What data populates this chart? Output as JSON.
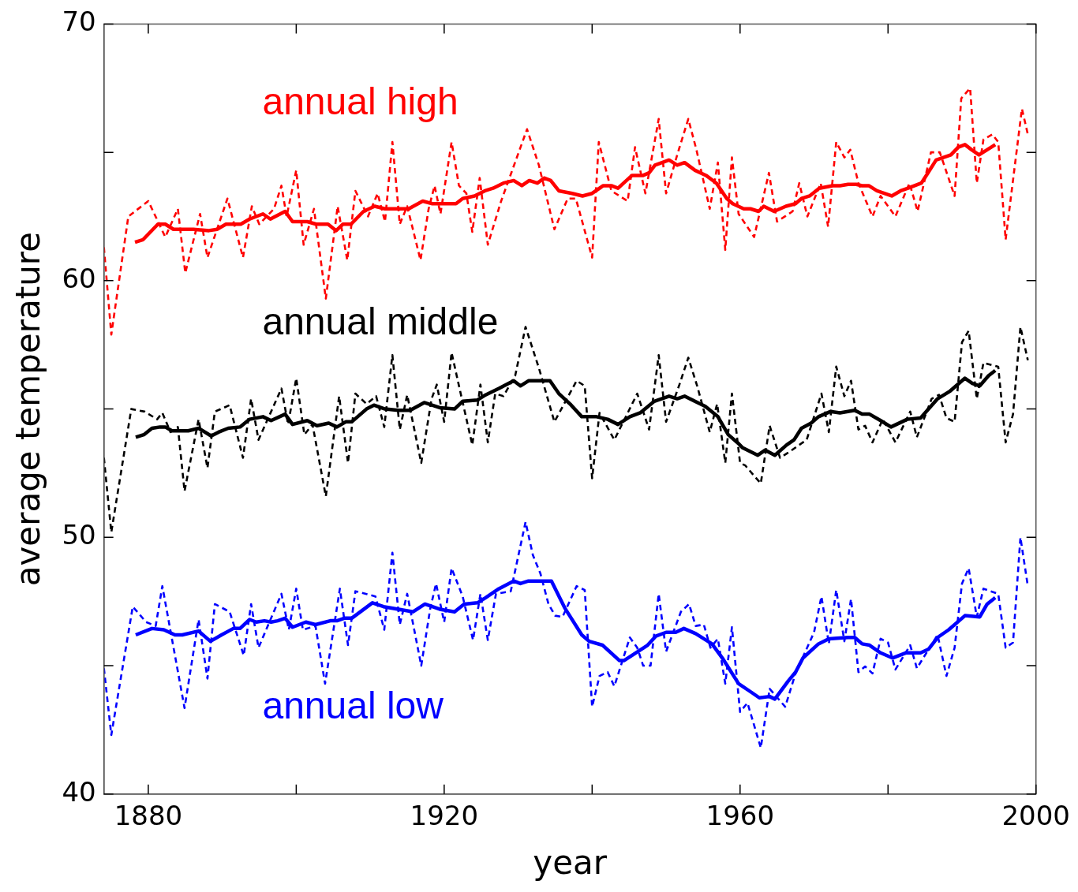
{
  "chart_data": {
    "type": "line",
    "xlabel": "year",
    "ylabel": "average temperature",
    "xlim": [
      1874,
      2000
    ],
    "ylim": [
      40,
      70
    ],
    "xticks": [
      1880,
      {
        "value": 1900,
        "label": null
      },
      1920,
      {
        "value": 1940,
        "label": null
      },
      1960,
      {
        "value": 1980,
        "label": null
      },
      2000
    ],
    "yticks": [
      40,
      {
        "value": 45,
        "label": null
      },
      50,
      {
        "value": 55,
        "label": null
      },
      60,
      {
        "value": 65,
        "label": null
      },
      70
    ],
    "legend": false,
    "marker": "none",
    "series": [
      {
        "color": "#ff0000",
        "line_style": "dashed",
        "x": [
          1874,
          1875,
          1877.3,
          1880,
          1882.3,
          1884,
          1885,
          1887,
          1888,
          1890.7,
          1892.8,
          1894,
          1895,
          1897,
          1898,
          1898.7,
          1900,
          1901,
          1902.4,
          1904,
          1905.6,
          1906.9,
          1908,
          1909.7,
          1911,
          1912,
          1913,
          1914,
          1915,
          1916.8,
          1917.9,
          1918.7,
          1919.5,
          1921,
          1922,
          1923,
          1923.8,
          1924.8,
          1925.9,
          1927.7,
          1931.2,
          1932.8,
          1934.9,
          1936.7,
          1937.8,
          1940,
          1940.9,
          1942.6,
          1944.8,
          1945.8,
          1947.2,
          1949,
          1950,
          1951.5,
          1953,
          1954.1,
          1955.9,
          1957,
          1958,
          1958.9,
          1959.8,
          1961.9,
          1963.9,
          1965,
          1967.1,
          1968,
          1969.1,
          1970.9,
          1971.9,
          1973,
          1974.1,
          1974.9,
          1976,
          1977.9,
          1979,
          1981,
          1982.9,
          1984,
          1985.8,
          1987,
          1989,
          1989.9,
          1991.1,
          1992,
          1992.9,
          1994.1,
          1994.9,
          1995.9,
          1998.1,
          1998.9
        ],
        "values": [
          61.3,
          57.9,
          62.5,
          63.1,
          61.7,
          62.8,
          60.3,
          62.6,
          60.9,
          63.2,
          60.9,
          62.9,
          62.2,
          62.8,
          63.7,
          62.5,
          64.3,
          61.4,
          62.8,
          59.3,
          62.9,
          60.8,
          63.5,
          62.5,
          63.4,
          62.3,
          65.4,
          62.2,
          62.9,
          60.8,
          62.8,
          63.7,
          62.6,
          65.4,
          63.7,
          63.4,
          61.9,
          64,
          61.4,
          63.1,
          65.9,
          64.5,
          62,
          63.2,
          63.2,
          60.9,
          65.4,
          63.5,
          63.1,
          65.2,
          63.4,
          66.3,
          63.4,
          64.9,
          66.3,
          65.1,
          62.8,
          64.6,
          61.2,
          64.8,
          62.6,
          61.7,
          64.2,
          62.3,
          62.7,
          63.8,
          62.5,
          63.8,
          62.1,
          65.4,
          64.8,
          65.1,
          63.8,
          62.5,
          63.3,
          62.5,
          63.8,
          62.7,
          65,
          65,
          63.3,
          67.1,
          67.5,
          63.8,
          65.5,
          65.7,
          65.4,
          61.6,
          66.7,
          65.7
        ]
      },
      {
        "name": "annual high",
        "color": "#ff0000",
        "line_style": "solid",
        "x": [
          1878.2,
          1879.3,
          1881.3,
          1882.3,
          1883.4,
          1886.1,
          1888.2,
          1889.3,
          1890.5,
          1892.5,
          1893.7,
          1895.5,
          1896.5,
          1898.5,
          1899.5,
          1901.5,
          1902.7,
          1904.3,
          1905.4,
          1906.3,
          1907.4,
          1909.1,
          1910.6,
          1912,
          1913.8,
          1915.2,
          1917.1,
          1918.4,
          1919.5,
          1920.3,
          1921.6,
          1922.5,
          1924.1,
          1925.5,
          1926.6,
          1928,
          1929.4,
          1930.5,
          1931.5,
          1932.6,
          1933.5,
          1934.4,
          1935.5,
          1937.3,
          1938.7,
          1940,
          1941.5,
          1942.6,
          1943.5,
          1945.4,
          1946.9,
          1947.7,
          1948.5,
          1950.4,
          1951.5,
          1952.5,
          1953.9,
          1955.4,
          1956.8,
          1958.2,
          1959,
          1960.5,
          1961.4,
          1962.5,
          1963.2,
          1964.6,
          1966.2,
          1967.5,
          1968.3,
          1969.4,
          1970.7,
          1972.5,
          1973.5,
          1974.6,
          1975.7,
          1976.5,
          1977.4,
          1978.5,
          1979.5,
          1980.5,
          1981.7,
          1982.7,
          1984.5,
          1985.4,
          1986.5,
          1987.5,
          1988.5,
          1989.5,
          1990.4,
          1991.3,
          1992.3,
          1993.4,
          1994.5
        ],
        "values": [
          61.5,
          61.6,
          62.2,
          62.2,
          62,
          62,
          61.95,
          62,
          62.2,
          62.2,
          62.4,
          62.6,
          62.4,
          62.7,
          62.3,
          62.3,
          62.2,
          62.2,
          61.95,
          62.2,
          62.2,
          62.7,
          62.9,
          62.8,
          62.8,
          62.8,
          63.1,
          63,
          63,
          63,
          63,
          63.2,
          63.3,
          63.5,
          63.6,
          63.8,
          63.9,
          63.7,
          63.9,
          63.8,
          64,
          63.9,
          63.5,
          63.4,
          63.3,
          63.4,
          63.7,
          63.7,
          63.6,
          64.1,
          64.1,
          64.2,
          64.5,
          64.7,
          64.5,
          64.6,
          64.3,
          64.1,
          63.8,
          63.2,
          63,
          62.8,
          62.8,
          62.7,
          62.9,
          62.7,
          62.9,
          63,
          63.2,
          63.3,
          63.6,
          63.7,
          63.7,
          63.75,
          63.75,
          63.7,
          63.7,
          63.5,
          63.4,
          63.3,
          63.5,
          63.6,
          63.8,
          64.2,
          64.7,
          64.8,
          64.9,
          65.2,
          65.3,
          65.1,
          64.9,
          65.1,
          65.3
        ]
      },
      {
        "color": "#000000",
        "line_style": "dashed",
        "x": [
          1874,
          1875,
          1877.7,
          1879.5,
          1881.2,
          1881.9,
          1883,
          1884,
          1884.9,
          1886.8,
          1888,
          1889,
          1891,
          1892.8,
          1893.9,
          1894.9,
          1898,
          1898.9,
          1900,
          1901.1,
          1902.2,
          1904,
          1905.8,
          1907,
          1908,
          1909.5,
          1910.8,
          1911.9,
          1913,
          1914,
          1915,
          1916.9,
          1918.3,
          1919,
          1920,
          1921,
          1922,
          1923.8,
          1924.9,
          1925.9,
          1926.9,
          1928,
          1929.6,
          1931,
          1932.8,
          1934.9,
          1937.9,
          1939,
          1940,
          1941,
          1943,
          1946.1,
          1947.7,
          1949,
          1950,
          1951.8,
          1953,
          1954.2,
          1955.9,
          1956.9,
          1958,
          1958.9,
          1960,
          1960.7,
          1962.8,
          1964,
          1965.4,
          1966.5,
          1969,
          1971,
          1972,
          1973,
          1974.1,
          1975,
          1976,
          1976.9,
          1977.9,
          1979.3,
          1981,
          1983,
          1983.9,
          1985.9,
          1986.9,
          1987.9,
          1989,
          1990,
          1990.9,
          1992,
          1992.9,
          1994.9,
          1995.9,
          1996.9,
          1997.9,
          1998.9
        ],
        "values": [
          53.1,
          50.2,
          55,
          54.9,
          54.6,
          54.85,
          54.1,
          54.3,
          51.8,
          54.6,
          52.7,
          54.9,
          55.15,
          53.1,
          55.4,
          53.8,
          55.8,
          54.4,
          56.2,
          54,
          54.4,
          51.6,
          55.5,
          52.9,
          55.6,
          55.2,
          55.5,
          54.3,
          57.1,
          54.2,
          55.55,
          52.9,
          55.4,
          55.95,
          54.5,
          57.2,
          55.9,
          53.6,
          55.95,
          53.7,
          55.6,
          55.5,
          56.3,
          58.2,
          56.6,
          54.5,
          56.1,
          55.9,
          52.3,
          54.85,
          53.8,
          55.6,
          54.2,
          57.1,
          54.5,
          55.95,
          57,
          55.9,
          54.1,
          55.2,
          52.9,
          55.6,
          52.9,
          52.8,
          52.1,
          54.35,
          53.1,
          53.3,
          53.8,
          55.6,
          54.1,
          56.65,
          55.5,
          56.1,
          54.2,
          54.35,
          53.7,
          54.6,
          53.7,
          54.9,
          53.9,
          55.4,
          55.55,
          54.65,
          54.5,
          57.6,
          58.05,
          55.4,
          56.8,
          56.65,
          53.7,
          54.8,
          58.2,
          56.9
        ]
      },
      {
        "name": "annual middle",
        "color": "#000000",
        "line_style": "solid",
        "x": [
          1878.3,
          1879.4,
          1880.5,
          1881.6,
          1882.3,
          1883.2,
          1885.4,
          1886.8,
          1888.5,
          1889.5,
          1890.8,
          1892.4,
          1893.7,
          1895.5,
          1896.6,
          1898.5,
          1899.5,
          1901.5,
          1902.8,
          1904.4,
          1905.5,
          1906.7,
          1907.5,
          1909.5,
          1910.5,
          1912,
          1913.8,
          1915.4,
          1917.3,
          1919.4,
          1921.4,
          1922.5,
          1924.5,
          1925.6,
          1927.4,
          1929.4,
          1930.3,
          1931.4,
          1934.3,
          1935.5,
          1937,
          1938.6,
          1940.6,
          1942.1,
          1943.5,
          1945.1,
          1946.5,
          1948.4,
          1950.4,
          1951.5,
          1952.5,
          1955.3,
          1957,
          1958.4,
          1959.8,
          1960.3,
          1962.4,
          1963.4,
          1964.7,
          1966.3,
          1967.3,
          1968.3,
          1969.6,
          1970.6,
          1972.2,
          1973.5,
          1975.5,
          1976.5,
          1977.5,
          1979,
          1980.4,
          1982.6,
          1984.4,
          1986.7,
          1988.4,
          1990.4,
          1991.4,
          1992.4,
          1993.6,
          1994.5
        ],
        "values": [
          53.9,
          54,
          54.25,
          54.3,
          54.3,
          54.15,
          54.15,
          54.25,
          53.95,
          54.1,
          54.25,
          54.3,
          54.6,
          54.7,
          54.55,
          54.8,
          54.4,
          54.55,
          54.35,
          54.45,
          54.3,
          54.5,
          54.5,
          55,
          55.15,
          55,
          54.95,
          54.95,
          55.25,
          55.05,
          55,
          55.3,
          55.35,
          55.55,
          55.8,
          56.1,
          55.9,
          56.1,
          56.1,
          55.6,
          55.2,
          54.7,
          54.7,
          54.6,
          54.4,
          54.7,
          54.85,
          55.3,
          55.5,
          55.4,
          55.5,
          55.1,
          54.7,
          54,
          53.65,
          53.5,
          53.2,
          53.4,
          53.2,
          53.6,
          53.8,
          54.25,
          54.45,
          54.7,
          54.9,
          54.85,
          54.95,
          54.8,
          54.8,
          54.55,
          54.3,
          54.6,
          54.65,
          55.4,
          55.7,
          56.2,
          56,
          55.9,
          56.3,
          56.5
        ]
      },
      {
        "color": "#0000ff",
        "line_style": "dashed",
        "x": [
          1874,
          1875,
          1877.9,
          1879.7,
          1881,
          1881.9,
          1884.9,
          1886.8,
          1888,
          1889,
          1891,
          1892.9,
          1893.9,
          1894.9,
          1898,
          1899,
          1900,
          1900.9,
          1902.6,
          1903.9,
          1905.9,
          1907,
          1908,
          1910.7,
          1911.9,
          1913,
          1914,
          1915,
          1916.9,
          1918.1,
          1918.9,
          1920,
          1921,
          1922.5,
          1923.9,
          1924.9,
          1925.9,
          1927,
          1929,
          1931,
          1932,
          1933,
          1934.1,
          1935,
          1936,
          1937.9,
          1939,
          1940,
          1941,
          1942.1,
          1943,
          1945.1,
          1946.1,
          1946.9,
          1947.9,
          1949,
          1950,
          1952,
          1953.1,
          1954,
          1955.1,
          1956,
          1957,
          1958,
          1958.9,
          1960,
          1961,
          1962.8,
          1964,
          1966.1,
          1967.5,
          1970,
          1971,
          1972,
          1973,
          1974.1,
          1975,
          1976,
          1976.9,
          1977.9,
          1979,
          1980,
          1981,
          1983,
          1983.9,
          1986.7,
          1987.9,
          1989,
          1990,
          1990.9,
          1992,
          1992.9,
          1994.9,
          1995.9,
          1996.9,
          1997.9,
          1998.9
        ],
        "values": [
          44.9,
          42.3,
          47.3,
          46.7,
          46.55,
          48.1,
          43.35,
          46.8,
          44.5,
          47.4,
          47.1,
          45.4,
          47.4,
          45.7,
          47.8,
          46.4,
          48,
          46.4,
          46.55,
          44.3,
          48,
          45.8,
          47.9,
          47.7,
          46.4,
          49.4,
          46.6,
          47.8,
          45,
          47.2,
          48.2,
          46.7,
          48.8,
          47.7,
          46,
          47.8,
          46,
          47.8,
          47.9,
          50.6,
          49.3,
          48.6,
          47.4,
          46.95,
          46.9,
          48.1,
          47.95,
          43.4,
          44.6,
          44.75,
          44.2,
          46.1,
          45.7,
          45,
          45,
          47.8,
          45.55,
          47.1,
          47.4,
          46.55,
          46.6,
          45.7,
          46.05,
          44.3,
          46.5,
          43.2,
          43.55,
          41.8,
          44.1,
          43.4,
          44.7,
          46.3,
          47.7,
          45.85,
          47.95,
          45.95,
          47.6,
          44.75,
          44.97,
          44.7,
          46.05,
          45.9,
          44.85,
          45.8,
          44.9,
          46.2,
          44.6,
          45.7,
          48.2,
          48.8,
          46.9,
          48,
          47.8,
          45.7,
          45.9,
          50,
          48.1
        ]
      },
      {
        "name": "annual low",
        "color": "#0000ff",
        "line_style": "solid",
        "x": [
          1878.3,
          1880.5,
          1882.1,
          1883.6,
          1884.6,
          1886.8,
          1888.4,
          1889.9,
          1891.5,
          1892.4,
          1893.7,
          1894.6,
          1895.7,
          1896.6,
          1897.5,
          1898.5,
          1899.5,
          1901.3,
          1902.6,
          1904.6,
          1905.5,
          1906.5,
          1907.5,
          1908.9,
          1910.3,
          1911.8,
          1913.8,
          1915.8,
          1917.4,
          1919.4,
          1921.4,
          1922.7,
          1924.5,
          1925.6,
          1927.4,
          1929.4,
          1930.3,
          1931.4,
          1934.5,
          1936.3,
          1938.6,
          1939.6,
          1941.4,
          1943.7,
          1944.3,
          1945.9,
          1947.5,
          1948.6,
          1950,
          1951.3,
          1952.4,
          1954,
          1956.2,
          1957.6,
          1959.8,
          1961.6,
          1962.6,
          1964,
          1964.7,
          1966.5,
          1967.5,
          1968.5,
          1970.6,
          1972,
          1974.6,
          1975.5,
          1976.5,
          1977.5,
          1979,
          1980.6,
          1982.4,
          1984.4,
          1985.5,
          1986.7,
          1988.2,
          1990.4,
          1992.4,
          1993.4,
          1994.5
        ],
        "values": [
          46.2,
          46.45,
          46.4,
          46.2,
          46.2,
          46.35,
          45.95,
          46.2,
          46.45,
          46.45,
          46.8,
          46.7,
          46.75,
          46.7,
          46.75,
          46.85,
          46.5,
          46.7,
          46.6,
          46.75,
          46.75,
          46.85,
          46.85,
          47.15,
          47.45,
          47.3,
          47.2,
          47.1,
          47.4,
          47.2,
          47.1,
          47.4,
          47.45,
          47.65,
          48,
          48.3,
          48.2,
          48.3,
          48.3,
          47.25,
          46.2,
          45.95,
          45.8,
          45.2,
          45.2,
          45.5,
          45.8,
          46.15,
          46.3,
          46.3,
          46.45,
          46.25,
          45.85,
          45.3,
          44.3,
          43.95,
          43.75,
          43.8,
          43.7,
          44.4,
          44.75,
          45.3,
          45.85,
          46.05,
          46.1,
          46.1,
          45.85,
          45.8,
          45.5,
          45.3,
          45.5,
          45.5,
          45.65,
          46.1,
          46.4,
          46.95,
          46.9,
          47.4,
          47.65
        ]
      }
    ]
  }
}
